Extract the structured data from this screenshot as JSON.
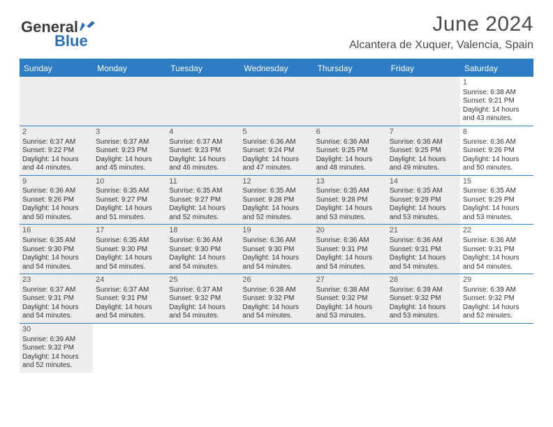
{
  "header": {
    "logo_dark": "General",
    "logo_blue": "Blue",
    "title": "June 2024",
    "location": "Alcantera de Xuquer, Valencia, Spain"
  },
  "day_headers": [
    "Sunday",
    "Monday",
    "Tuesday",
    "Wednesday",
    "Thursday",
    "Friday",
    "Saturday"
  ],
  "colors": {
    "header_bg": "#2d7cc4",
    "shaded_bg": "#ededed",
    "border": "#2d7cc4"
  },
  "weeks": [
    [
      {
        "num": "",
        "sunrise": "",
        "sunset": "",
        "daylight": "",
        "shaded": true
      },
      {
        "num": "",
        "sunrise": "",
        "sunset": "",
        "daylight": "",
        "shaded": true
      },
      {
        "num": "",
        "sunrise": "",
        "sunset": "",
        "daylight": "",
        "shaded": true
      },
      {
        "num": "",
        "sunrise": "",
        "sunset": "",
        "daylight": "",
        "shaded": true
      },
      {
        "num": "",
        "sunrise": "",
        "sunset": "",
        "daylight": "",
        "shaded": true
      },
      {
        "num": "",
        "sunrise": "",
        "sunset": "",
        "daylight": "",
        "shaded": true
      },
      {
        "num": "1",
        "sunrise": "Sunrise: 6:38 AM",
        "sunset": "Sunset: 9:21 PM",
        "daylight": "Daylight: 14 hours and 43 minutes.",
        "shaded": false
      }
    ],
    [
      {
        "num": "2",
        "sunrise": "Sunrise: 6:37 AM",
        "sunset": "Sunset: 9:22 PM",
        "daylight": "Daylight: 14 hours and 44 minutes.",
        "shaded": true
      },
      {
        "num": "3",
        "sunrise": "Sunrise: 6:37 AM",
        "sunset": "Sunset: 9:23 PM",
        "daylight": "Daylight: 14 hours and 45 minutes.",
        "shaded": true
      },
      {
        "num": "4",
        "sunrise": "Sunrise: 6:37 AM",
        "sunset": "Sunset: 9:23 PM",
        "daylight": "Daylight: 14 hours and 46 minutes.",
        "shaded": true
      },
      {
        "num": "5",
        "sunrise": "Sunrise: 6:36 AM",
        "sunset": "Sunset: 9:24 PM",
        "daylight": "Daylight: 14 hours and 47 minutes.",
        "shaded": true
      },
      {
        "num": "6",
        "sunrise": "Sunrise: 6:36 AM",
        "sunset": "Sunset: 9:25 PM",
        "daylight": "Daylight: 14 hours and 48 minutes.",
        "shaded": true
      },
      {
        "num": "7",
        "sunrise": "Sunrise: 6:36 AM",
        "sunset": "Sunset: 9:25 PM",
        "daylight": "Daylight: 14 hours and 49 minutes.",
        "shaded": true
      },
      {
        "num": "8",
        "sunrise": "Sunrise: 6:36 AM",
        "sunset": "Sunset: 9:26 PM",
        "daylight": "Daylight: 14 hours and 50 minutes.",
        "shaded": false
      }
    ],
    [
      {
        "num": "9",
        "sunrise": "Sunrise: 6:36 AM",
        "sunset": "Sunset: 9:26 PM",
        "daylight": "Daylight: 14 hours and 50 minutes.",
        "shaded": true
      },
      {
        "num": "10",
        "sunrise": "Sunrise: 6:35 AM",
        "sunset": "Sunset: 9:27 PM",
        "daylight": "Daylight: 14 hours and 51 minutes.",
        "shaded": true
      },
      {
        "num": "11",
        "sunrise": "Sunrise: 6:35 AM",
        "sunset": "Sunset: 9:27 PM",
        "daylight": "Daylight: 14 hours and 52 minutes.",
        "shaded": true
      },
      {
        "num": "12",
        "sunrise": "Sunrise: 6:35 AM",
        "sunset": "Sunset: 9:28 PM",
        "daylight": "Daylight: 14 hours and 52 minutes.",
        "shaded": true
      },
      {
        "num": "13",
        "sunrise": "Sunrise: 6:35 AM",
        "sunset": "Sunset: 9:28 PM",
        "daylight": "Daylight: 14 hours and 53 minutes.",
        "shaded": true
      },
      {
        "num": "14",
        "sunrise": "Sunrise: 6:35 AM",
        "sunset": "Sunset: 9:29 PM",
        "daylight": "Daylight: 14 hours and 53 minutes.",
        "shaded": true
      },
      {
        "num": "15",
        "sunrise": "Sunrise: 6:35 AM",
        "sunset": "Sunset: 9:29 PM",
        "daylight": "Daylight: 14 hours and 53 minutes.",
        "shaded": false
      }
    ],
    [
      {
        "num": "16",
        "sunrise": "Sunrise: 6:35 AM",
        "sunset": "Sunset: 9:30 PM",
        "daylight": "Daylight: 14 hours and 54 minutes.",
        "shaded": true
      },
      {
        "num": "17",
        "sunrise": "Sunrise: 6:35 AM",
        "sunset": "Sunset: 9:30 PM",
        "daylight": "Daylight: 14 hours and 54 minutes.",
        "shaded": true
      },
      {
        "num": "18",
        "sunrise": "Sunrise: 6:36 AM",
        "sunset": "Sunset: 9:30 PM",
        "daylight": "Daylight: 14 hours and 54 minutes.",
        "shaded": true
      },
      {
        "num": "19",
        "sunrise": "Sunrise: 6:36 AM",
        "sunset": "Sunset: 9:30 PM",
        "daylight": "Daylight: 14 hours and 54 minutes.",
        "shaded": true
      },
      {
        "num": "20",
        "sunrise": "Sunrise: 6:36 AM",
        "sunset": "Sunset: 9:31 PM",
        "daylight": "Daylight: 14 hours and 54 minutes.",
        "shaded": true
      },
      {
        "num": "21",
        "sunrise": "Sunrise: 6:36 AM",
        "sunset": "Sunset: 9:31 PM",
        "daylight": "Daylight: 14 hours and 54 minutes.",
        "shaded": true
      },
      {
        "num": "22",
        "sunrise": "Sunrise: 6:36 AM",
        "sunset": "Sunset: 9:31 PM",
        "daylight": "Daylight: 14 hours and 54 minutes.",
        "shaded": false
      }
    ],
    [
      {
        "num": "23",
        "sunrise": "Sunrise: 6:37 AM",
        "sunset": "Sunset: 9:31 PM",
        "daylight": "Daylight: 14 hours and 54 minutes.",
        "shaded": true
      },
      {
        "num": "24",
        "sunrise": "Sunrise: 6:37 AM",
        "sunset": "Sunset: 9:31 PM",
        "daylight": "Daylight: 14 hours and 54 minutes.",
        "shaded": true
      },
      {
        "num": "25",
        "sunrise": "Sunrise: 6:37 AM",
        "sunset": "Sunset: 9:32 PM",
        "daylight": "Daylight: 14 hours and 54 minutes.",
        "shaded": true
      },
      {
        "num": "26",
        "sunrise": "Sunrise: 6:38 AM",
        "sunset": "Sunset: 9:32 PM",
        "daylight": "Daylight: 14 hours and 54 minutes.",
        "shaded": true
      },
      {
        "num": "27",
        "sunrise": "Sunrise: 6:38 AM",
        "sunset": "Sunset: 9:32 PM",
        "daylight": "Daylight: 14 hours and 53 minutes.",
        "shaded": true
      },
      {
        "num": "28",
        "sunrise": "Sunrise: 6:39 AM",
        "sunset": "Sunset: 9:32 PM",
        "daylight": "Daylight: 14 hours and 53 minutes.",
        "shaded": true
      },
      {
        "num": "29",
        "sunrise": "Sunrise: 6:39 AM",
        "sunset": "Sunset: 9:32 PM",
        "daylight": "Daylight: 14 hours and 52 minutes.",
        "shaded": false
      }
    ],
    [
      {
        "num": "30",
        "sunrise": "Sunrise: 6:39 AM",
        "sunset": "Sunset: 9:32 PM",
        "daylight": "Daylight: 14 hours and 52 minutes.",
        "shaded": true
      },
      {
        "num": "",
        "sunrise": "",
        "sunset": "",
        "daylight": "",
        "shaded": false
      },
      {
        "num": "",
        "sunrise": "",
        "sunset": "",
        "daylight": "",
        "shaded": false
      },
      {
        "num": "",
        "sunrise": "",
        "sunset": "",
        "daylight": "",
        "shaded": false
      },
      {
        "num": "",
        "sunrise": "",
        "sunset": "",
        "daylight": "",
        "shaded": false
      },
      {
        "num": "",
        "sunrise": "",
        "sunset": "",
        "daylight": "",
        "shaded": false
      },
      {
        "num": "",
        "sunrise": "",
        "sunset": "",
        "daylight": "",
        "shaded": false
      }
    ]
  ]
}
